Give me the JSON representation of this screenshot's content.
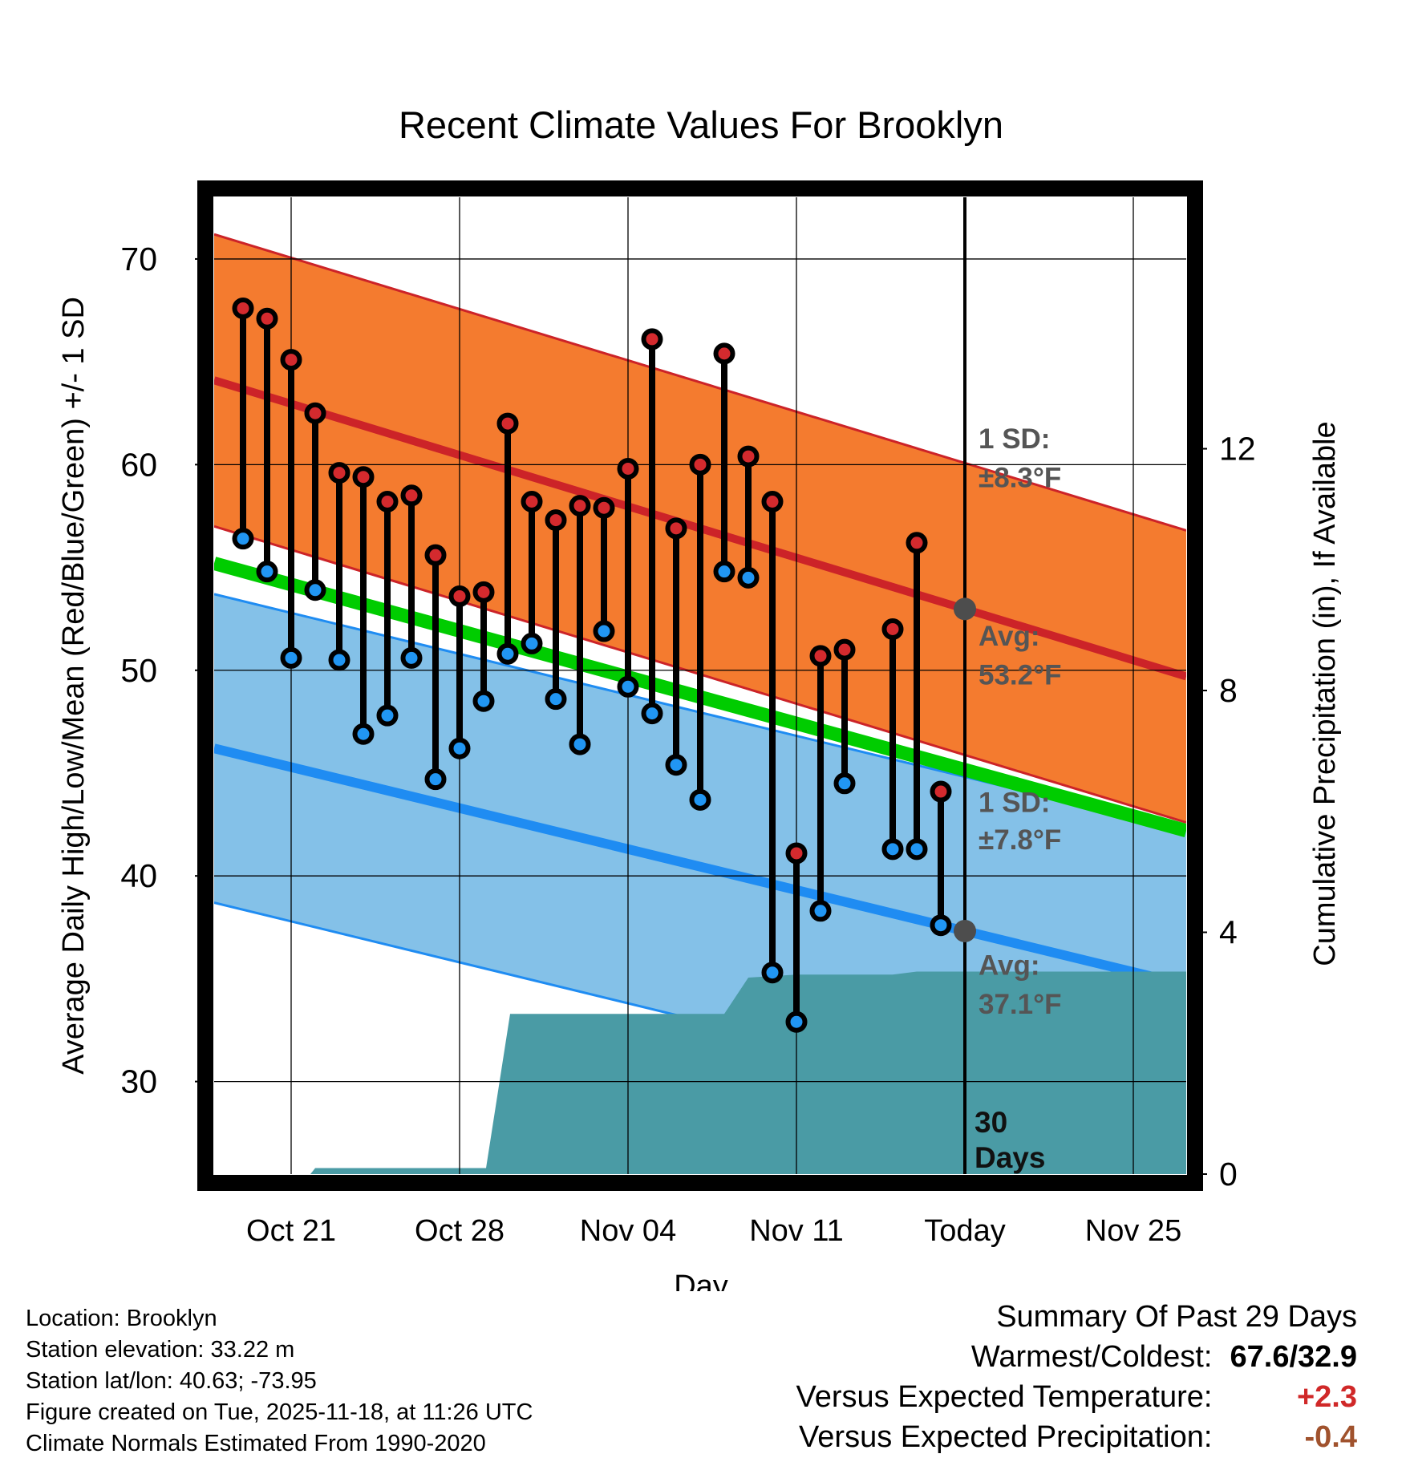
{
  "chart_data": {
    "type": "line",
    "title": "Recent Climate Values For Brooklyn",
    "xlabel": "Day",
    "ylabel": "Average Daily High/Low/Mean (Red/Blue/Green) +/- 1 SD",
    "y2label": "Cumulative Precipitation (in), If Available",
    "xlim": [
      -3.2,
      37.2
    ],
    "ylim": [
      25.5,
      73
    ],
    "y2lim": [
      0,
      16.16
    ],
    "x_ticks": [
      {
        "x": 0,
        "label": "Oct 21"
      },
      {
        "x": 7,
        "label": "Oct 28"
      },
      {
        "x": 14,
        "label": "Nov 04"
      },
      {
        "x": 21,
        "label": "Nov 11"
      },
      {
        "x": 28,
        "label": "Today"
      },
      {
        "x": 35,
        "label": "Nov 25"
      }
    ],
    "y_ticks": [
      30,
      40,
      50,
      60,
      70
    ],
    "y2_ticks": [
      0,
      4,
      8,
      12
    ],
    "today_x": 28,
    "normal_high": {
      "start": 64.1,
      "end": 49.7,
      "sd": 7.1
    },
    "normal_low": {
      "start": 46.2,
      "end": 34.7,
      "sd": 7.5
    },
    "normal_mean": {
      "start": 55.2,
      "end": 42.2
    },
    "daily": [
      {
        "x": -2,
        "high": 67.6,
        "low": 56.4
      },
      {
        "x": -1,
        "high": 67.1,
        "low": 54.8
      },
      {
        "x": 0,
        "high": 65.1,
        "low": 50.6
      },
      {
        "x": 1,
        "high": 62.5,
        "low": 53.9
      },
      {
        "x": 2,
        "high": 59.6,
        "low": 50.5
      },
      {
        "x": 3,
        "high": 59.4,
        "low": 46.9
      },
      {
        "x": 4,
        "high": 58.2,
        "low": 47.8
      },
      {
        "x": 5,
        "high": 58.5,
        "low": 50.6
      },
      {
        "x": 6,
        "high": 55.6,
        "low": 44.7
      },
      {
        "x": 7,
        "high": 53.6,
        "low": 46.2
      },
      {
        "x": 8,
        "high": 53.8,
        "low": 48.5
      },
      {
        "x": 9,
        "high": 62.0,
        "low": 50.8
      },
      {
        "x": 10,
        "high": 58.2,
        "low": 51.3
      },
      {
        "x": 11,
        "high": 57.3,
        "low": 48.6
      },
      {
        "x": 12,
        "high": 58.0,
        "low": 46.4
      },
      {
        "x": 13,
        "high": 57.9,
        "low": 51.9
      },
      {
        "x": 14,
        "high": 59.8,
        "low": 49.2
      },
      {
        "x": 15,
        "high": 66.1,
        "low": 47.9
      },
      {
        "x": 16,
        "high": 56.9,
        "low": 45.4
      },
      {
        "x": 17,
        "high": 60.0,
        "low": 43.7
      },
      {
        "x": 18,
        "high": 65.4,
        "low": 54.8
      },
      {
        "x": 19,
        "high": 60.4,
        "low": 54.5
      },
      {
        "x": 20,
        "high": 58.2,
        "low": 35.3
      },
      {
        "x": 21,
        "high": 41.1,
        "low": 32.9
      },
      {
        "x": 22,
        "high": 50.7,
        "low": 38.3
      },
      {
        "x": 23,
        "high": 51.0,
        "low": 44.5
      },
      {
        "x": 25,
        "high": 52.0,
        "low": 41.3
      },
      {
        "x": 26,
        "high": 56.2,
        "low": 41.3
      },
      {
        "x": 27,
        "high": 44.1,
        "low": 37.6
      }
    ],
    "precip_cumulative": [
      {
        "x": -2,
        "y": 0
      },
      {
        "x": 0.8,
        "y": 0
      },
      {
        "x": 1,
        "y": 0.1
      },
      {
        "x": 8.1,
        "y": 0.1
      },
      {
        "x": 9.1,
        "y": 2.65
      },
      {
        "x": 18,
        "y": 2.65
      },
      {
        "x": 19,
        "y": 3.25
      },
      {
        "x": 21,
        "y": 3.3
      },
      {
        "x": 25,
        "y": 3.3
      },
      {
        "x": 26,
        "y": 3.35
      },
      {
        "x": 37.2,
        "y": 3.35
      }
    ],
    "annotations": {
      "high_sd": "1 SD:",
      "high_sd_value": "±8.3°F",
      "high_avg": "Avg:",
      "high_avg_value": "53.2°F",
      "low_sd": "1 SD:",
      "low_sd_value": "±7.8°F",
      "low_avg": "Avg:",
      "low_avg_value": "37.1°F",
      "window_line1": "30",
      "window_line2": "Days"
    },
    "colors": {
      "high_band": "#f47b2f",
      "high_line": "#cc2328",
      "low_band": "#84c1e8",
      "low_line": "#1f8cf2",
      "mean_line": "#00cc00",
      "precip": "#4a9ba5",
      "high_dot": "#d42a2e",
      "low_dot": "#2196f3",
      "annotation": "#555555"
    }
  },
  "footer": {
    "location": "Location: Brooklyn",
    "elevation": "Station elevation: 33.22 m",
    "latlon": "Station lat/lon: 40.63; -73.95",
    "created": "Figure created on Tue, 2025-11-18, at 11:26 UTC",
    "normals": "Climate Normals Estimated From 1990-2020"
  },
  "summary": {
    "title": "Summary Of Past 29 Days",
    "warm_cold_label": "Warmest/Coldest:",
    "warm_cold_value": "67.6/32.9",
    "temp_label": "Versus Expected Temperature:",
    "temp_value": "+2.3",
    "precip_label": "Versus Expected Precipitation:",
    "precip_value": "-0.4"
  }
}
